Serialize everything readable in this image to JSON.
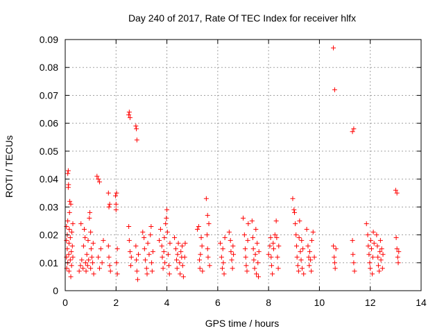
{
  "chart_data": {
    "type": "scatter",
    "title": "Day 240 of 2017, Rate Of TEC Index for receiver hlfx",
    "xlabel": "GPS time / hours",
    "ylabel": "ROTI / TECUs",
    "xlim": [
      0,
      14
    ],
    "ylim": [
      0,
      0.09
    ],
    "xticks": [
      0,
      2,
      4,
      6,
      8,
      10,
      12,
      14
    ],
    "yticks": [
      0,
      0.01,
      0.02,
      0.03,
      0.04,
      0.05,
      0.06,
      0.07,
      0.08,
      0.09
    ],
    "xtick_labels": [
      "0",
      "2",
      "4",
      "6",
      "8",
      "10",
      "12",
      "14"
    ],
    "ytick_labels": [
      "0",
      "0.01",
      "0.02",
      "0.03",
      "0.04",
      "0.05",
      "0.06",
      "0.07",
      "0.08",
      "0.09"
    ],
    "grid": true,
    "marker": "+",
    "color": "#ff0000",
    "series": [
      {
        "name": "ROTI",
        "points": [
          [
            0.05,
            0.012
          ],
          [
            0.05,
            0.018
          ],
          [
            0.05,
            0.023
          ],
          [
            0.06,
            0.008
          ],
          [
            0.08,
            0.015
          ],
          [
            0.08,
            0.02
          ],
          [
            0.1,
            0.01
          ],
          [
            0.1,
            0.025
          ],
          [
            0.1,
            0.042
          ],
          [
            0.12,
            0.043
          ],
          [
            0.12,
            0.037
          ],
          [
            0.13,
            0.038
          ],
          [
            0.14,
            0.013
          ],
          [
            0.15,
            0.017
          ],
          [
            0.15,
            0.007
          ],
          [
            0.16,
            0.022
          ],
          [
            0.17,
            0.028
          ],
          [
            0.18,
            0.032
          ],
          [
            0.2,
            0.011
          ],
          [
            0.2,
            0.019
          ],
          [
            0.22,
            0.031
          ],
          [
            0.22,
            0.005
          ],
          [
            0.24,
            0.014
          ],
          [
            0.25,
            0.009
          ],
          [
            0.26,
            0.021
          ],
          [
            0.28,
            0.016
          ],
          [
            0.3,
            0.024
          ],
          [
            0.3,
            0.012
          ],
          [
            0.55,
            0.007
          ],
          [
            0.6,
            0.009
          ],
          [
            0.62,
            0.024
          ],
          [
            0.65,
            0.011
          ],
          [
            0.7,
            0.008
          ],
          [
            0.72,
            0.016
          ],
          [
            0.75,
            0.022
          ],
          [
            0.78,
            0.019
          ],
          [
            0.8,
            0.01
          ],
          [
            0.82,
            0.007
          ],
          [
            0.85,
            0.013
          ],
          [
            0.88,
            0.009
          ],
          [
            0.9,
            0.018
          ],
          [
            0.92,
            0.011
          ],
          [
            0.95,
            0.026
          ],
          [
            0.97,
            0.028
          ],
          [
            1.0,
            0.021
          ],
          [
            1.0,
            0.008
          ],
          [
            1.02,
            0.015
          ],
          [
            1.05,
            0.012
          ],
          [
            1.08,
            0.01
          ],
          [
            1.1,
            0.017
          ],
          [
            1.12,
            0.006
          ],
          [
            1.25,
            0.041
          ],
          [
            1.3,
            0.04
          ],
          [
            1.35,
            0.039
          ],
          [
            1.3,
            0.012
          ],
          [
            1.35,
            0.008
          ],
          [
            1.4,
            0.015
          ],
          [
            1.45,
            0.01
          ],
          [
            1.5,
            0.018
          ],
          [
            1.7,
            0.035
          ],
          [
            1.72,
            0.03
          ],
          [
            1.75,
            0.031
          ],
          [
            1.7,
            0.016
          ],
          [
            1.72,
            0.012
          ],
          [
            1.75,
            0.009
          ],
          [
            1.78,
            0.007
          ],
          [
            1.98,
            0.034
          ],
          [
            2.0,
            0.031
          ],
          [
            2.02,
            0.035
          ],
          [
            2.0,
            0.029
          ],
          [
            2.05,
            0.015
          ],
          [
            2.02,
            0.01
          ],
          [
            2.05,
            0.006
          ],
          [
            2.5,
            0.063
          ],
          [
            2.52,
            0.064
          ],
          [
            2.55,
            0.062
          ],
          [
            2.5,
            0.023
          ],
          [
            2.52,
            0.018
          ],
          [
            2.55,
            0.014
          ],
          [
            2.58,
            0.009
          ],
          [
            2.6,
            0.012
          ],
          [
            2.78,
            0.059
          ],
          [
            2.8,
            0.058
          ],
          [
            2.82,
            0.054
          ],
          [
            2.78,
            0.016
          ],
          [
            2.8,
            0.011
          ],
          [
            2.82,
            0.007
          ],
          [
            2.85,
            0.004
          ],
          [
            2.88,
            0.013
          ],
          [
            3.05,
            0.021
          ],
          [
            3.1,
            0.019
          ],
          [
            3.12,
            0.015
          ],
          [
            3.15,
            0.011
          ],
          [
            3.2,
            0.008
          ],
          [
            3.22,
            0.006
          ],
          [
            3.25,
            0.017
          ],
          [
            3.3,
            0.013
          ],
          [
            3.35,
            0.02
          ],
          [
            3.38,
            0.023
          ],
          [
            3.4,
            0.01
          ],
          [
            3.42,
            0.007
          ],
          [
            3.45,
            0.014
          ],
          [
            3.7,
            0.018
          ],
          [
            3.75,
            0.022
          ],
          [
            3.8,
            0.016
          ],
          [
            3.82,
            0.012
          ],
          [
            3.85,
            0.008
          ],
          [
            3.88,
            0.014
          ],
          [
            3.9,
            0.019
          ],
          [
            3.92,
            0.01
          ],
          [
            3.95,
            0.024
          ],
          [
            3.98,
            0.026
          ],
          [
            4.0,
            0.029
          ],
          [
            4.02,
            0.021
          ],
          [
            4.05,
            0.013
          ],
          [
            4.08,
            0.009
          ],
          [
            4.1,
            0.006
          ],
          [
            4.12,
            0.017
          ],
          [
            4.3,
            0.019
          ],
          [
            4.35,
            0.015
          ],
          [
            4.38,
            0.011
          ],
          [
            4.4,
            0.008
          ],
          [
            4.42,
            0.013
          ],
          [
            4.45,
            0.017
          ],
          [
            4.5,
            0.01
          ],
          [
            4.52,
            0.006
          ],
          [
            4.55,
            0.014
          ],
          [
            4.58,
            0.012
          ],
          [
            4.6,
            0.016
          ],
          [
            4.62,
            0.009
          ],
          [
            4.65,
            0.005
          ],
          [
            4.7,
            0.012
          ],
          [
            4.72,
            0.017
          ],
          [
            5.2,
            0.022
          ],
          [
            5.25,
            0.023
          ],
          [
            5.28,
            0.011
          ],
          [
            5.3,
            0.008
          ],
          [
            5.32,
            0.013
          ],
          [
            5.35,
            0.019
          ],
          [
            5.38,
            0.016
          ],
          [
            5.4,
            0.007
          ],
          [
            5.55,
            0.033
          ],
          [
            5.6,
            0.027
          ],
          [
            5.58,
            0.02
          ],
          [
            5.6,
            0.015
          ],
          [
            5.62,
            0.012
          ],
          [
            5.65,
            0.024
          ],
          [
            5.68,
            0.009
          ],
          [
            6.1,
            0.017
          ],
          [
            6.15,
            0.012
          ],
          [
            6.18,
            0.008
          ],
          [
            6.2,
            0.015
          ],
          [
            6.22,
            0.01
          ],
          [
            6.25,
            0.006
          ],
          [
            6.28,
            0.019
          ],
          [
            6.45,
            0.021
          ],
          [
            6.5,
            0.018
          ],
          [
            6.52,
            0.014
          ],
          [
            6.55,
            0.011
          ],
          [
            6.58,
            0.008
          ],
          [
            6.6,
            0.016
          ],
          [
            6.62,
            0.013
          ],
          [
            7.0,
            0.026
          ],
          [
            7.05,
            0.02
          ],
          [
            7.08,
            0.015
          ],
          [
            7.1,
            0.012
          ],
          [
            7.12,
            0.009
          ],
          [
            7.15,
            0.007
          ],
          [
            7.18,
            0.018
          ],
          [
            7.2,
            0.024
          ],
          [
            7.35,
            0.025
          ],
          [
            7.38,
            0.019
          ],
          [
            7.4,
            0.015
          ],
          [
            7.42,
            0.011
          ],
          [
            7.45,
            0.008
          ],
          [
            7.48,
            0.013
          ],
          [
            7.5,
            0.022
          ],
          [
            7.52,
            0.006
          ],
          [
            7.55,
            0.017
          ],
          [
            7.58,
            0.01
          ],
          [
            7.6,
            0.005
          ],
          [
            7.62,
            0.014
          ],
          [
            8.0,
            0.013
          ],
          [
            8.05,
            0.016
          ],
          [
            8.08,
            0.019
          ],
          [
            8.1,
            0.012
          ],
          [
            8.12,
            0.009
          ],
          [
            8.15,
            0.006
          ],
          [
            8.18,
            0.017
          ],
          [
            8.2,
            0.015
          ],
          [
            8.25,
            0.02
          ],
          [
            8.3,
            0.025
          ],
          [
            8.32,
            0.019
          ],
          [
            8.35,
            0.012
          ],
          [
            8.38,
            0.008
          ],
          [
            8.4,
            0.016
          ],
          [
            8.95,
            0.033
          ],
          [
            9.0,
            0.029
          ],
          [
            9.02,
            0.028
          ],
          [
            9.05,
            0.024
          ],
          [
            9.08,
            0.02
          ],
          [
            9.1,
            0.016
          ],
          [
            9.12,
            0.012
          ],
          [
            9.15,
            0.009
          ],
          [
            9.18,
            0.007
          ],
          [
            9.2,
            0.019
          ],
          [
            9.22,
            0.025
          ],
          [
            9.25,
            0.014
          ],
          [
            9.28,
            0.011
          ],
          [
            9.3,
            0.018
          ],
          [
            9.32,
            0.008
          ],
          [
            9.35,
            0.015
          ],
          [
            9.38,
            0.006
          ],
          [
            9.5,
            0.022
          ],
          [
            9.55,
            0.016
          ],
          [
            9.58,
            0.012
          ],
          [
            9.6,
            0.009
          ],
          [
            9.62,
            0.014
          ],
          [
            9.65,
            0.011
          ],
          [
            9.68,
            0.007
          ],
          [
            9.7,
            0.018
          ],
          [
            9.75,
            0.021
          ],
          [
            9.8,
            0.012
          ],
          [
            10.55,
            0.087
          ],
          [
            10.6,
            0.072
          ],
          [
            10.55,
            0.016
          ],
          [
            10.58,
            0.012
          ],
          [
            10.6,
            0.01
          ],
          [
            10.62,
            0.008
          ],
          [
            10.65,
            0.015
          ],
          [
            11.3,
            0.057
          ],
          [
            11.35,
            0.058
          ],
          [
            11.3,
            0.018
          ],
          [
            11.32,
            0.013
          ],
          [
            11.35,
            0.01
          ],
          [
            11.38,
            0.007
          ],
          [
            11.85,
            0.024
          ],
          [
            11.9,
            0.02
          ],
          [
            11.92,
            0.016
          ],
          [
            11.95,
            0.013
          ],
          [
            11.98,
            0.01
          ],
          [
            12.0,
            0.008
          ],
          [
            12.02,
            0.018
          ],
          [
            12.05,
            0.015
          ],
          [
            12.08,
            0.006
          ],
          [
            12.1,
            0.012
          ],
          [
            12.12,
            0.021
          ],
          [
            12.15,
            0.017
          ],
          [
            12.25,
            0.02
          ],
          [
            12.28,
            0.016
          ],
          [
            12.3,
            0.012
          ],
          [
            12.32,
            0.009
          ],
          [
            12.35,
            0.007
          ],
          [
            12.38,
            0.014
          ],
          [
            12.4,
            0.018
          ],
          [
            12.42,
            0.011
          ],
          [
            12.45,
            0.015
          ],
          [
            12.48,
            0.008
          ],
          [
            12.5,
            0.013
          ],
          [
            13.0,
            0.036
          ],
          [
            13.05,
            0.035
          ],
          [
            13.02,
            0.019
          ],
          [
            13.05,
            0.015
          ],
          [
            13.08,
            0.012
          ],
          [
            13.1,
            0.01
          ],
          [
            13.12,
            0.014
          ]
        ]
      }
    ]
  }
}
